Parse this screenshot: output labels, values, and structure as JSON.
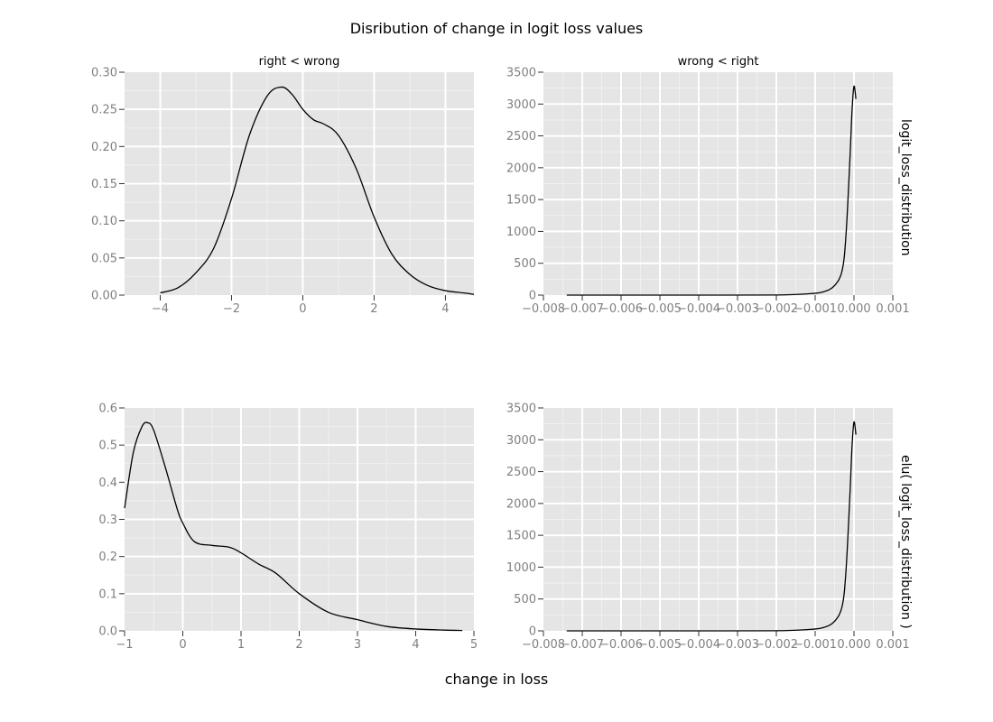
{
  "figure": {
    "title": "Disribution of change in logit loss values",
    "xlabel": "change in loss",
    "colors": {
      "panel_bg": "#e5e5e5",
      "grid_major": "#ffffff",
      "grid_minor": "#f0f0f0",
      "line": "#000000",
      "tick_text": "#808080"
    }
  },
  "chart_data": [
    {
      "type": "line",
      "facet_col": "right < wrong",
      "facet_row": "",
      "xlim": [
        -5,
        4.8
      ],
      "ylim": [
        0,
        0.3
      ],
      "xticks": [
        -4,
        -2,
        0,
        2,
        4
      ],
      "xtick_labels": [
        "−4",
        "−2",
        "0",
        "2",
        "4"
      ],
      "yticks": [
        0,
        0.05,
        0.1,
        0.15,
        0.2,
        0.25,
        0.3
      ],
      "ytick_labels": [
        "0.00",
        "0.05",
        "0.10",
        "0.15",
        "0.20",
        "0.25",
        "0.30"
      ],
      "grid": true,
      "x": [
        -4.0,
        -3.5,
        -3.0,
        -2.5,
        -2.0,
        -1.5,
        -1.0,
        -0.6,
        -0.3,
        0.0,
        0.3,
        0.6,
        1.0,
        1.5,
        2.0,
        2.5,
        3.0,
        3.5,
        4.0,
        4.5,
        4.8
      ],
      "y": [
        0.003,
        0.01,
        0.03,
        0.063,
        0.13,
        0.215,
        0.268,
        0.28,
        0.27,
        0.25,
        0.236,
        0.23,
        0.215,
        0.17,
        0.105,
        0.055,
        0.028,
        0.013,
        0.006,
        0.003,
        0.001
      ]
    },
    {
      "type": "line",
      "facet_col": "wrong < right",
      "facet_row": "logit_loss_distribution",
      "xlim": [
        -0.008,
        0.001
      ],
      "ylim": [
        0,
        3500
      ],
      "xticks": [
        -0.008,
        -0.007,
        -0.006,
        -0.005,
        -0.004,
        -0.003,
        -0.002,
        -0.001,
        0.0,
        0.001
      ],
      "xtick_labels": [
        "−0.008",
        "−0.007",
        "−0.006",
        "−0.005",
        "−0.004",
        "−0.003",
        "−0.002",
        "−0.001",
        "0.000",
        "0.001"
      ],
      "yticks": [
        0,
        500,
        1000,
        1500,
        2000,
        2500,
        3000,
        3500
      ],
      "ytick_labels": [
        "0",
        "500",
        "1000",
        "1500",
        "2000",
        "2500",
        "3000",
        "3500"
      ],
      "grid": true,
      "x": [
        -0.0074,
        -0.006,
        -0.004,
        -0.002,
        -0.0012,
        -0.0008,
        -0.0005,
        -0.0003,
        -0.0002,
        -0.0001,
        -5e-05,
        0.0,
        5e-05
      ],
      "y": [
        0,
        0,
        0,
        2,
        20,
        50,
        150,
        400,
        1000,
        2200,
        2900,
        3280,
        3080
      ]
    },
    {
      "type": "line",
      "facet_col": "",
      "facet_row": "",
      "xlim": [
        -1,
        5
      ],
      "ylim": [
        0,
        0.6
      ],
      "xticks": [
        -1,
        0,
        1,
        2,
        3,
        4,
        5
      ],
      "xtick_labels": [
        "−1",
        "0",
        "1",
        "2",
        "3",
        "4",
        "5"
      ],
      "yticks": [
        0,
        0.1,
        0.2,
        0.3,
        0.4,
        0.5,
        0.6
      ],
      "ytick_labels": [
        "0.0",
        "0.1",
        "0.2",
        "0.3",
        "0.4",
        "0.5",
        "0.6"
      ],
      "grid": true,
      "x": [
        -1.0,
        -0.85,
        -0.7,
        -0.6,
        -0.5,
        -0.3,
        -0.1,
        0.0,
        0.2,
        0.5,
        0.8,
        1.0,
        1.3,
        1.6,
        2.0,
        2.5,
        3.0,
        3.5,
        4.0,
        4.5,
        4.8
      ],
      "y": [
        0.33,
        0.48,
        0.55,
        0.56,
        0.54,
        0.44,
        0.33,
        0.29,
        0.24,
        0.23,
        0.225,
        0.21,
        0.18,
        0.155,
        0.1,
        0.05,
        0.03,
        0.012,
        0.005,
        0.002,
        0.001
      ]
    },
    {
      "type": "line",
      "facet_col": "",
      "facet_row": "elu( logit_loss_distribution )",
      "xlim": [
        -0.008,
        0.001
      ],
      "ylim": [
        0,
        3500
      ],
      "xticks": [
        -0.008,
        -0.007,
        -0.006,
        -0.005,
        -0.004,
        -0.003,
        -0.002,
        -0.001,
        0.0,
        0.001
      ],
      "xtick_labels": [
        "−0.008",
        "−0.007",
        "−0.006",
        "−0.005",
        "−0.004",
        "−0.003",
        "−0.002",
        "−0.001",
        "0.000",
        "0.001"
      ],
      "yticks": [
        0,
        500,
        1000,
        1500,
        2000,
        2500,
        3000,
        3500
      ],
      "ytick_labels": [
        "0",
        "500",
        "1000",
        "1500",
        "2000",
        "2500",
        "3000",
        "3500"
      ],
      "grid": true,
      "x": [
        -0.0074,
        -0.006,
        -0.004,
        -0.002,
        -0.0012,
        -0.0008,
        -0.0005,
        -0.0003,
        -0.0002,
        -0.0001,
        -5e-05,
        0.0,
        5e-05
      ],
      "y": [
        0,
        0,
        0,
        2,
        20,
        50,
        150,
        400,
        1000,
        2200,
        2900,
        3280,
        3080
      ]
    }
  ]
}
